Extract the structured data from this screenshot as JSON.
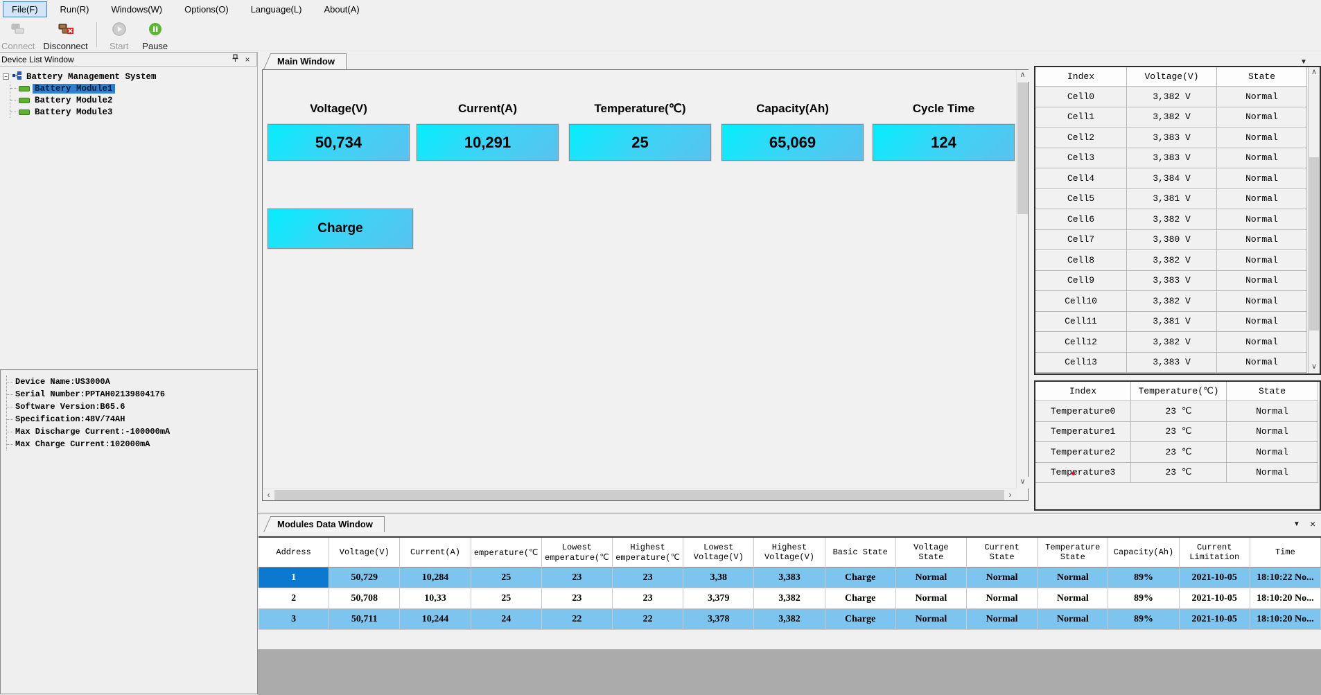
{
  "menu": {
    "items": [
      {
        "label": "File(F)",
        "active": true
      },
      {
        "label": "Run(R)",
        "active": false
      },
      {
        "label": "Windows(W)",
        "active": false
      },
      {
        "label": "Options(O)",
        "active": false
      },
      {
        "label": "Language(L)",
        "active": false
      },
      {
        "label": "About(A)",
        "active": false
      }
    ]
  },
  "toolbar": {
    "connect": "Connect",
    "disconnect": "Disconnect",
    "start": "Start",
    "pause": "Pause"
  },
  "device_list": {
    "title": "Device List Window",
    "root_label": "Battery Management System",
    "modules": [
      {
        "label": "Battery Module1",
        "selected": true
      },
      {
        "label": "Battery Module2",
        "selected": false
      },
      {
        "label": "Battery Module3",
        "selected": false
      }
    ]
  },
  "device_info": {
    "lines": [
      "Device Name:US3000A",
      "Serial Number:PPTAH02139804176",
      "Software Version:B65.6",
      "Specification:48V/74AH",
      "Max Discharge Current:-100000mA",
      "Max Charge Current:102000mA"
    ]
  },
  "main_window": {
    "tab_label": "Main Window",
    "metrics": [
      {
        "label": "Voltage(V)",
        "value": "50,734"
      },
      {
        "label": "Current(A)",
        "value": "10,291"
      },
      {
        "label": "Temperature(℃)",
        "value": "25"
      },
      {
        "label": "Capacity(Ah)",
        "value": "65,069"
      },
      {
        "label": "Cycle Time",
        "value": "124"
      }
    ],
    "charge_label": "Charge",
    "accent_gradient": [
      "#04eefe",
      "#57c2ef"
    ]
  },
  "cell_table": {
    "headers": [
      "Index",
      "Voltage(V)",
      "State"
    ],
    "rows": [
      [
        "Cell0",
        "3,382 V",
        "Normal"
      ],
      [
        "Cell1",
        "3,382 V",
        "Normal"
      ],
      [
        "Cell2",
        "3,383 V",
        "Normal"
      ],
      [
        "Cell3",
        "3,383 V",
        "Normal"
      ],
      [
        "Cell4",
        "3,384 V",
        "Normal"
      ],
      [
        "Cell5",
        "3,381 V",
        "Normal"
      ],
      [
        "Cell6",
        "3,382 V",
        "Normal"
      ],
      [
        "Cell7",
        "3,380 V",
        "Normal"
      ],
      [
        "Cell8",
        "3,382 V",
        "Normal"
      ],
      [
        "Cell9",
        "3,383 V",
        "Normal"
      ],
      [
        "Cell10",
        "3,382 V",
        "Normal"
      ],
      [
        "Cell11",
        "3,381 V",
        "Normal"
      ],
      [
        "Cell12",
        "3,382 V",
        "Normal"
      ],
      [
        "Cell13",
        "3,383 V",
        "Normal"
      ]
    ]
  },
  "temperature_table": {
    "headers": [
      "Index",
      "Temperature(℃)",
      "State"
    ],
    "rows": [
      [
        "Temperature0",
        "23 ℃",
        "Normal"
      ],
      [
        "Temperature1",
        "23 ℃",
        "Normal"
      ],
      [
        "Temperature2",
        "23 ℃",
        "Normal"
      ],
      [
        "Temperature3",
        "23 ℃",
        "Normal"
      ]
    ]
  },
  "modules_window": {
    "tab_label": "Modules Data Window",
    "headers": [
      {
        "l1": "Address",
        "l2": ""
      },
      {
        "l1": "Voltage(V)",
        "l2": ""
      },
      {
        "l1": "Current(A)",
        "l2": ""
      },
      {
        "l1": "emperature(℃",
        "l2": ""
      },
      {
        "l1": "Lowest",
        "l2": "emperature(℃"
      },
      {
        "l1": "Highest",
        "l2": "emperature(℃"
      },
      {
        "l1": "Lowest",
        "l2": "Voltage(V)"
      },
      {
        "l1": "Highest",
        "l2": "Voltage(V)"
      },
      {
        "l1": "Basic State",
        "l2": ""
      },
      {
        "l1": "Voltage",
        "l2": "State"
      },
      {
        "l1": "Current",
        "l2": "State"
      },
      {
        "l1": "Temperature",
        "l2": "State"
      },
      {
        "l1": "Capacity(Ah)",
        "l2": ""
      },
      {
        "l1": "Current",
        "l2": "Limitation"
      },
      {
        "l1": "Time",
        "l2": ""
      }
    ],
    "rows": [
      [
        "1",
        "50,729",
        "10,284",
        "25",
        "23",
        "23",
        "3,38",
        "3,383",
        "Charge",
        "Normal",
        "Normal",
        "Normal",
        "89%",
        "2021-10-05",
        "18:10:22 No..."
      ],
      [
        "2",
        "50,708",
        "10,33",
        "25",
        "23",
        "23",
        "3,379",
        "3,382",
        "Charge",
        "Normal",
        "Normal",
        "Normal",
        "89%",
        "2021-10-05",
        "18:10:20 No..."
      ],
      [
        "3",
        "50,711",
        "10,244",
        "24",
        "22",
        "22",
        "3,378",
        "3,382",
        "Charge",
        "Normal",
        "Normal",
        "Normal",
        "89%",
        "2021-10-05",
        "18:10:20 No..."
      ]
    ]
  }
}
